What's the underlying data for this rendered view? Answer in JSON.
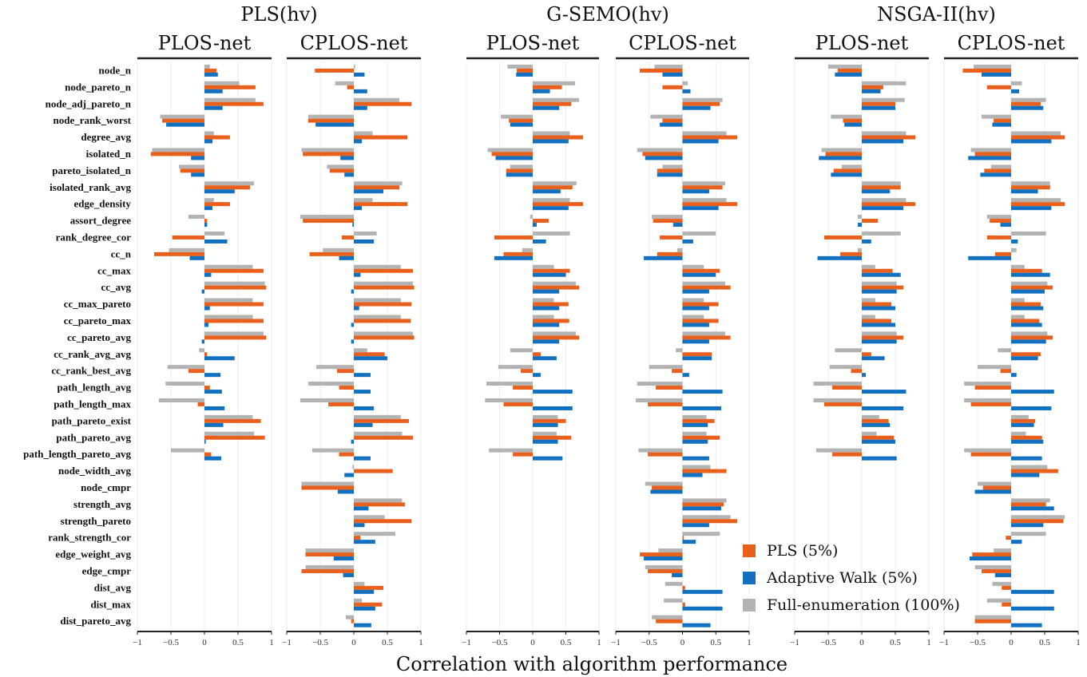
{
  "chart_data": {
    "type": "bar",
    "orientation": "horizontal",
    "xlabel": "Correlation with algorithm performance",
    "xlim": [
      -1,
      1
    ],
    "xticks": [
      "−1",
      "−0.5",
      "0",
      "0.5",
      "1"
    ],
    "grid": "vertical lines at ticks",
    "legend_position": "bottom-right",
    "colors": {
      "PLS (5%)": "#E8601C",
      "Adaptive Walk (5%)": "#1170BF",
      "Full-enumeration (100%)": "#B3B3B3"
    },
    "series_names": [
      "PLS (5%)",
      "Adaptive Walk (5%)",
      "Full-enumeration (100%)"
    ],
    "features": [
      "node_n",
      "node_pareto_n",
      "node_adj_pareto_n",
      "node_rank_worst",
      "degree_avg",
      "isolated_n",
      "pareto_isolated_n",
      "isolated_rank_avg",
      "edge_density",
      "assort_degree",
      "rank_degree_cor",
      "cc_n",
      "cc_max",
      "cc_avg",
      "cc_max_pareto",
      "cc_pareto_max",
      "cc_pareto_avg",
      "cc_rank_avg_avg",
      "cc_rank_best_avg",
      "path_length_avg",
      "path_length_max",
      "path_pareto_exist",
      "path_pareto_avg",
      "path_length_pareto_avg",
      "node_width_avg",
      "node_cmpr",
      "strength_avg",
      "strength_pareto",
      "rank_strength_cor",
      "edge_weight_avg",
      "edge_cmpr",
      "dist_avg",
      "dist_max",
      "dist_pareto_avg"
    ],
    "groups": [
      "PLS(hv)",
      "G-SEMO(hv)",
      "NSGA-II(hv)"
    ],
    "panels": [
      {
        "group": "PLS(hv)",
        "network": "PLOS-net",
        "full": [
          0.08,
          0.52,
          0.76,
          -0.66,
          0.14,
          -0.78,
          -0.38,
          0.74,
          0.14,
          -0.24,
          0.3,
          -0.53,
          0.72,
          0.9,
          0.72,
          0.72,
          0.88,
          -0.08,
          -0.55,
          -0.58,
          -0.68,
          0.72,
          0.74,
          -0.5,
          null,
          null,
          null,
          null,
          null,
          null,
          null,
          null,
          null,
          null
        ],
        "pls": [
          0.18,
          0.76,
          0.88,
          -0.63,
          0.38,
          -0.8,
          -0.36,
          0.68,
          0.38,
          0.04,
          -0.48,
          -0.75,
          0.88,
          0.92,
          0.88,
          0.88,
          0.92,
          0.04,
          -0.24,
          0.08,
          -0.1,
          0.84,
          0.9,
          0.1,
          null,
          null,
          null,
          null,
          null,
          null,
          null,
          null,
          null,
          null
        ],
        "aw": [
          0.2,
          0.27,
          0.27,
          -0.57,
          0.12,
          -0.2,
          -0.2,
          0.45,
          0.12,
          0.04,
          0.34,
          -0.22,
          0.1,
          -0.04,
          0.08,
          0.06,
          -0.04,
          0.45,
          0.24,
          0.26,
          0.3,
          0.28,
          0.02,
          0.25,
          null,
          null,
          null,
          null,
          null,
          null,
          null,
          null,
          null,
          null
        ]
      },
      {
        "group": "PLS(hv)",
        "network": "CPLOS-net",
        "full": [
          0.02,
          -0.28,
          0.68,
          -0.68,
          0.28,
          -0.78,
          -0.4,
          0.72,
          0.28,
          -0.8,
          0.34,
          -0.46,
          0.7,
          0.88,
          0.7,
          0.7,
          0.88,
          0.2,
          -0.56,
          -0.68,
          -0.8,
          0.7,
          0.72,
          -0.62,
          -0.02,
          -0.78,
          0.72,
          0.46,
          0.62,
          -0.72,
          -0.72,
          0.16,
          0.12,
          -0.12
        ],
        "pls": [
          -0.58,
          -0.1,
          0.86,
          -0.68,
          0.8,
          -0.76,
          -0.36,
          0.68,
          0.8,
          -0.76,
          -0.18,
          -0.66,
          0.88,
          0.9,
          0.86,
          0.85,
          0.9,
          0.46,
          -0.25,
          -0.22,
          -0.38,
          0.82,
          0.88,
          -0.22,
          0.58,
          -0.78,
          0.76,
          0.86,
          0.1,
          -0.72,
          -0.78,
          0.44,
          0.42,
          -0.04
        ],
        "aw": [
          0.16,
          0.2,
          0.2,
          -0.57,
          0.12,
          -0.2,
          -0.14,
          0.44,
          0.12,
          -0.02,
          0.3,
          -0.22,
          0.1,
          -0.04,
          0.08,
          -0.04,
          -0.04,
          0.5,
          0.25,
          0.25,
          0.3,
          0.28,
          -0.04,
          0.25,
          -0.14,
          -0.24,
          0.22,
          0.16,
          0.32,
          -0.3,
          -0.16,
          0.3,
          0.32,
          0.26
        ]
      },
      {
        "group": "G-SEMO(hv)",
        "network": "PLOS-net",
        "full": [
          -0.38,
          0.64,
          0.7,
          -0.48,
          0.56,
          -0.68,
          -0.34,
          0.66,
          0.56,
          -0.04,
          0.56,
          -0.16,
          0.32,
          0.65,
          0.32,
          0.32,
          0.65,
          -0.34,
          -0.52,
          -0.7,
          -0.72,
          0.38,
          0.36,
          -0.66,
          null,
          null,
          null,
          null,
          null,
          null,
          null,
          null,
          null,
          null
        ],
        "pls": [
          -0.24,
          0.44,
          0.58,
          -0.36,
          0.76,
          -0.62,
          -0.4,
          0.6,
          0.76,
          0.24,
          -0.58,
          -0.44,
          0.56,
          0.7,
          0.54,
          0.55,
          0.7,
          0.12,
          -0.18,
          -0.3,
          -0.44,
          0.5,
          0.58,
          -0.3,
          null,
          null,
          null,
          null,
          null,
          null,
          null,
          null,
          null,
          null
        ],
        "aw": [
          -0.25,
          0.26,
          0.4,
          -0.34,
          0.54,
          -0.56,
          -0.4,
          0.42,
          0.54,
          0.06,
          0.2,
          -0.58,
          0.5,
          0.4,
          0.4,
          0.4,
          0.4,
          0.36,
          0.12,
          0.6,
          0.6,
          0.38,
          0.38,
          0.45,
          null,
          null,
          null,
          null,
          null,
          null,
          null,
          null,
          null,
          null
        ]
      },
      {
        "group": "G-SEMO(hv)",
        "network": "CPLOS-net",
        "full": [
          -0.42,
          0.08,
          0.6,
          -0.48,
          0.66,
          -0.68,
          -0.3,
          0.64,
          0.66,
          -0.46,
          0.5,
          -0.08,
          0.32,
          0.64,
          0.32,
          0.32,
          0.64,
          -0.1,
          -0.5,
          -0.68,
          -0.7,
          0.36,
          0.36,
          -0.66,
          0.42,
          -0.56,
          0.66,
          0.72,
          0.56,
          -0.36,
          -0.56,
          -0.26,
          -0.28,
          -0.46
        ],
        "pls": [
          -0.64,
          -0.3,
          0.56,
          -0.3,
          0.82,
          -0.6,
          -0.38,
          0.6,
          0.82,
          -0.44,
          -0.34,
          -0.38,
          0.56,
          0.72,
          0.54,
          0.54,
          0.72,
          0.44,
          -0.16,
          -0.4,
          -0.52,
          0.48,
          0.56,
          -0.52,
          0.66,
          -0.46,
          0.62,
          0.82,
          0.02,
          -0.64,
          -0.52,
          0.04,
          0.04,
          -0.4
        ],
        "aw": [
          -0.3,
          0.12,
          0.42,
          -0.34,
          0.54,
          -0.56,
          -0.38,
          0.4,
          0.54,
          -0.14,
          0.16,
          -0.58,
          0.5,
          0.4,
          0.4,
          0.4,
          0.4,
          0.44,
          0.1,
          0.6,
          0.58,
          0.38,
          0.38,
          0.4,
          0.3,
          -0.48,
          0.58,
          0.4,
          0.2,
          -0.58,
          -0.16,
          0.6,
          0.6,
          0.42
        ]
      },
      {
        "group": "NSGA-II(hv)",
        "network": "PLOS-net",
        "full": [
          -0.5,
          0.66,
          0.64,
          -0.46,
          0.66,
          -0.6,
          -0.3,
          0.58,
          0.66,
          -0.06,
          0.58,
          -0.06,
          0.2,
          0.52,
          0.2,
          0.2,
          0.52,
          -0.4,
          -0.48,
          -0.72,
          -0.72,
          0.26,
          0.22,
          -0.68,
          null,
          null,
          null,
          null,
          null,
          null,
          null,
          null,
          null,
          null
        ],
        "pls": [
          -0.36,
          0.32,
          0.5,
          -0.28,
          0.8,
          -0.54,
          -0.42,
          0.58,
          0.8,
          0.24,
          -0.56,
          -0.32,
          0.46,
          0.62,
          0.44,
          0.44,
          0.62,
          0.14,
          -0.16,
          -0.44,
          -0.56,
          0.4,
          0.48,
          -0.44,
          null,
          null,
          null,
          null,
          null,
          null,
          null,
          null,
          null,
          null
        ],
        "aw": [
          -0.4,
          0.28,
          0.5,
          -0.26,
          0.62,
          -0.64,
          -0.46,
          0.42,
          0.62,
          -0.06,
          0.14,
          -0.66,
          0.58,
          0.52,
          0.5,
          0.5,
          0.52,
          0.34,
          0.06,
          0.66,
          0.62,
          0.42,
          0.5,
          0.52,
          null,
          null,
          null,
          null,
          null,
          null,
          null,
          null,
          null,
          null
        ]
      },
      {
        "group": "NSGA-II(hv)",
        "network": "CPLOS-net",
        "full": [
          -0.56,
          0.16,
          0.52,
          -0.44,
          0.74,
          -0.6,
          -0.3,
          0.58,
          0.74,
          -0.36,
          0.52,
          0.08,
          0.2,
          0.54,
          0.2,
          0.2,
          0.54,
          -0.2,
          -0.5,
          -0.7,
          -0.7,
          0.26,
          0.22,
          -0.7,
          0.54,
          -0.5,
          0.58,
          0.8,
          0.52,
          -0.26,
          -0.54,
          -0.28,
          -0.36,
          -0.54
        ],
        "pls": [
          -0.72,
          -0.36,
          0.44,
          -0.26,
          0.8,
          -0.54,
          -0.4,
          0.58,
          0.8,
          -0.32,
          -0.36,
          -0.24,
          0.46,
          0.62,
          0.44,
          0.42,
          0.62,
          0.44,
          -0.16,
          -0.54,
          -0.6,
          0.36,
          0.46,
          -0.6,
          0.7,
          -0.42,
          0.52,
          0.78,
          -0.08,
          -0.58,
          -0.44,
          -0.14,
          -0.14,
          -0.54
        ],
        "aw": [
          -0.44,
          0.12,
          0.48,
          -0.28,
          0.6,
          -0.64,
          -0.46,
          0.4,
          0.6,
          -0.16,
          0.1,
          -0.64,
          0.58,
          0.5,
          0.48,
          0.46,
          0.52,
          0.4,
          0.08,
          0.64,
          0.6,
          0.34,
          0.48,
          0.46,
          0.42,
          -0.54,
          0.64,
          0.48,
          0.16,
          -0.62,
          -0.24,
          0.64,
          0.64,
          0.46
        ]
      }
    ]
  }
}
